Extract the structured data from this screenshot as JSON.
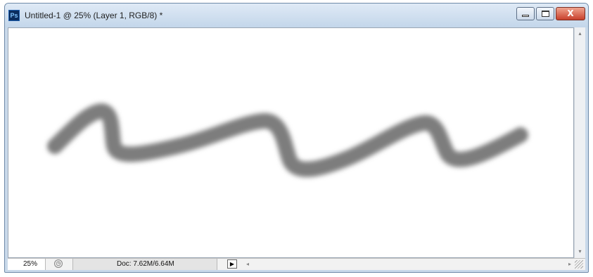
{
  "window": {
    "app_icon": "Ps",
    "title": "Untitled-1 @ 25% (Layer 1, RGB/8) *",
    "controls": {
      "minimize_icon": "minimize-icon",
      "maximize_icon": "maximize-icon",
      "close_label": "X"
    }
  },
  "canvas": {
    "background": "#ffffff",
    "stroke_color": "#7d7d7d",
    "stroke_description_icon": "brush-stroke"
  },
  "statusbar": {
    "zoom": "25%",
    "doc_info": "Doc: 7.62M/6.64M",
    "menu_arrow": "▶",
    "scroll_left": "◂",
    "scroll_right": "▸"
  },
  "scrollbar": {
    "up": "▴",
    "down": "▾"
  }
}
